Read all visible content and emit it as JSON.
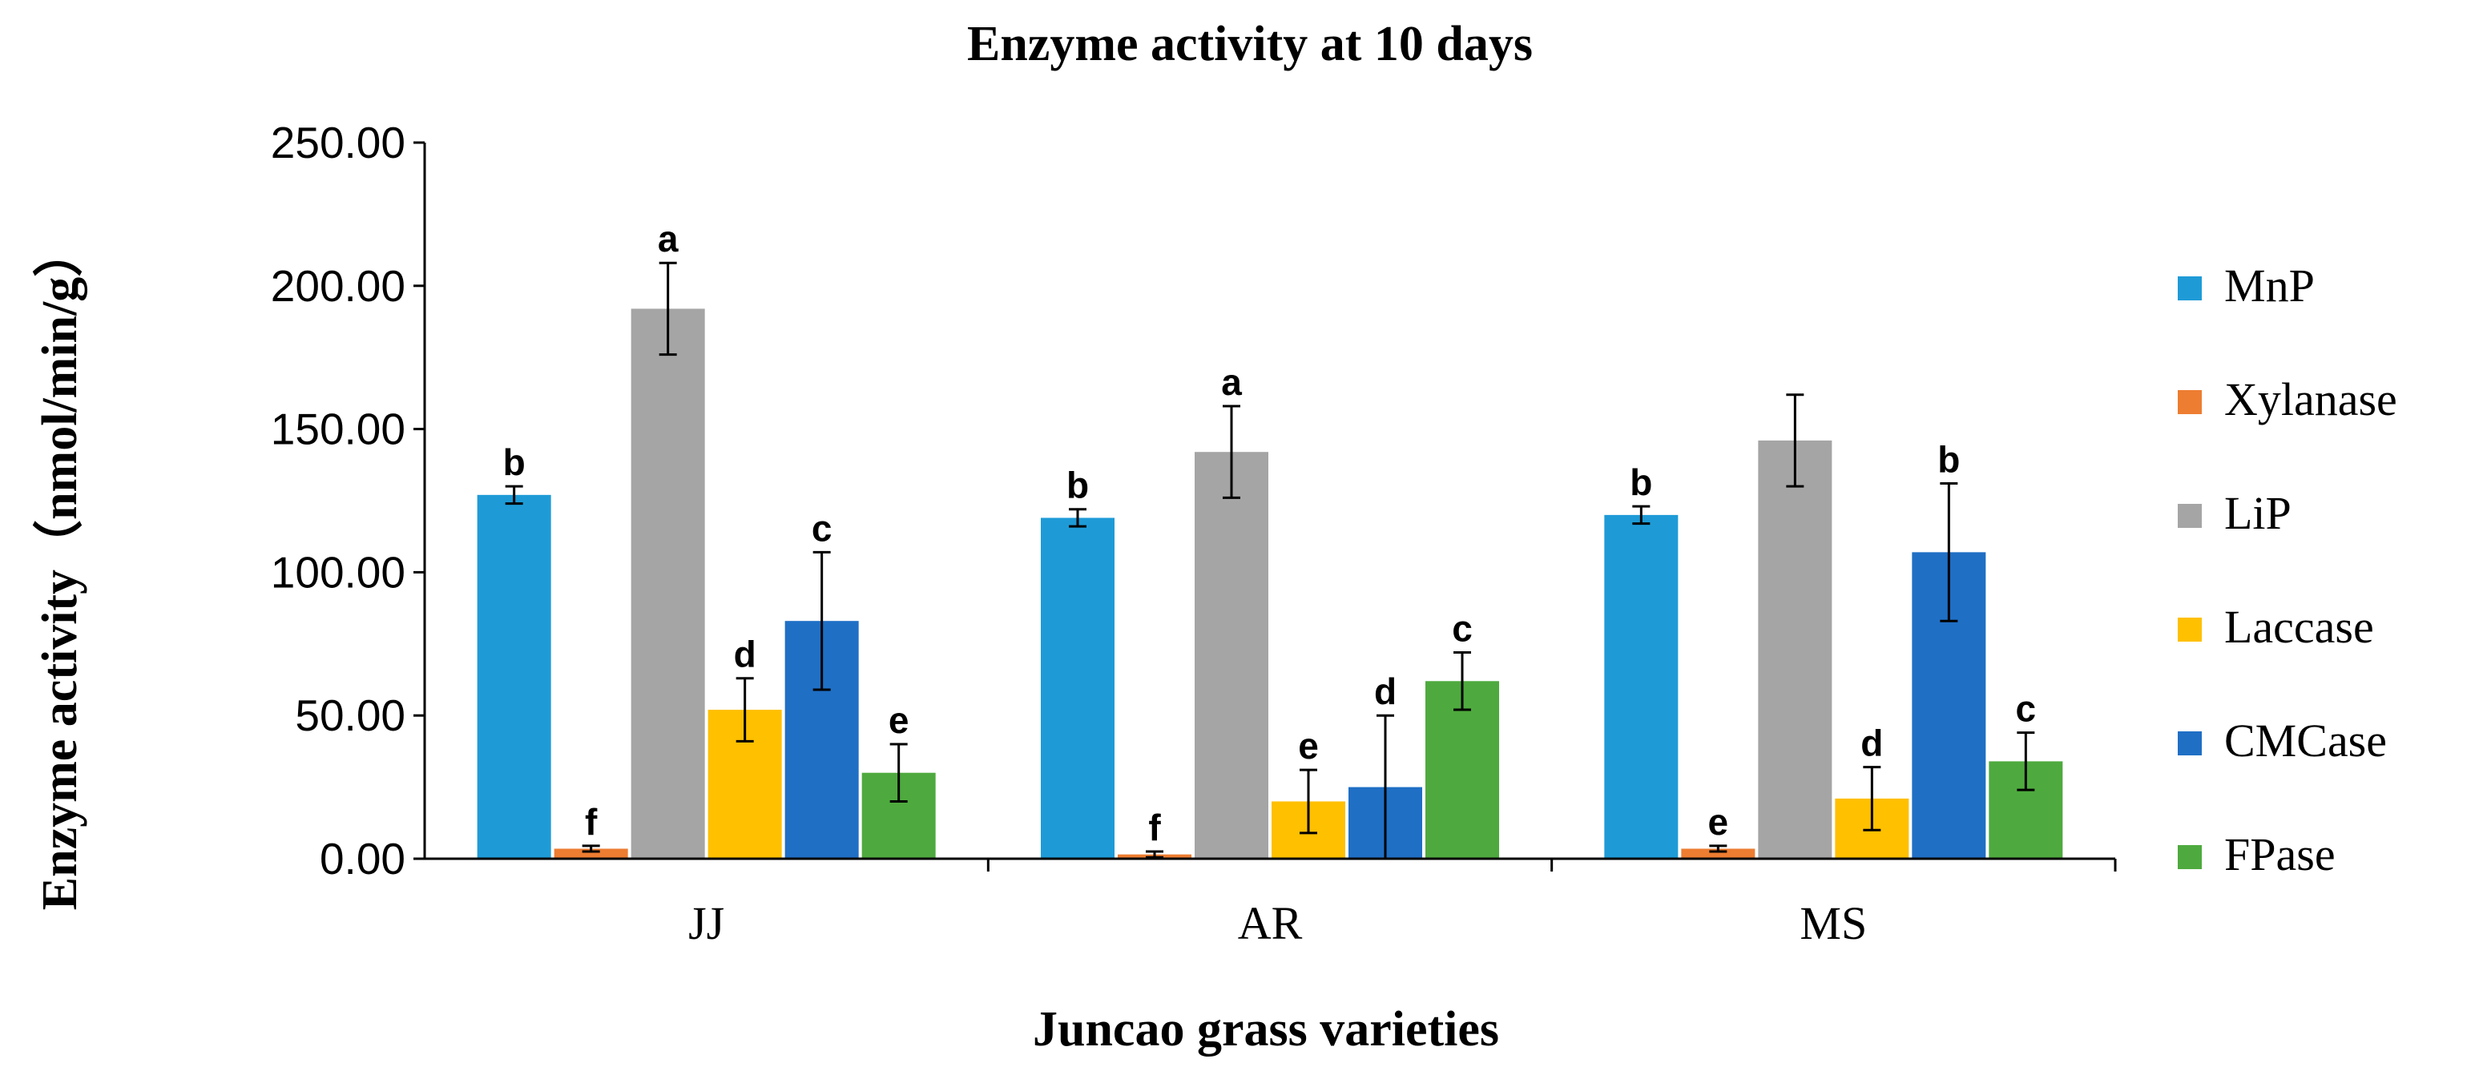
{
  "chart_data": {
    "type": "bar",
    "title": "Enzyme activity at 10 days",
    "xlabel": "Juncao grass varieties",
    "ylabel": "Enzyme activity（nmol/min/g）",
    "ylim": [
      0,
      250
    ],
    "yticks": [
      "0.00",
      "50.00",
      "100.00",
      "150.00",
      "200.00",
      "250.00"
    ],
    "grid": false,
    "legend_position": "right",
    "categories": [
      "JJ",
      "AR",
      "MS"
    ],
    "series": [
      {
        "name": "MnP",
        "color": "#1E9BD7",
        "values": [
          127,
          119,
          120
        ],
        "errors": [
          3,
          3,
          3
        ],
        "letters": [
          "b",
          "b",
          "b"
        ]
      },
      {
        "name": "Xylanase",
        "color": "#ED7D31",
        "values": [
          3.5,
          1.5,
          3.5
        ],
        "errors": [
          1,
          1,
          1
        ],
        "letters": [
          "f",
          "f",
          "e"
        ]
      },
      {
        "name": "LiP",
        "color": "#A5A5A5",
        "values": [
          192,
          142,
          146
        ],
        "errors": [
          16,
          16,
          16
        ],
        "letters": [
          "a",
          "a",
          ""
        ]
      },
      {
        "name": "Laccase",
        "color": "#FFC000",
        "values": [
          52,
          20,
          21
        ],
        "errors": [
          11,
          11,
          11
        ],
        "letters": [
          "d",
          "e",
          "d"
        ]
      },
      {
        "name": "CMCase",
        "color": "#1F6FC5",
        "values": [
          83,
          25,
          107
        ],
        "errors": [
          24,
          25,
          24
        ],
        "letters": [
          "c",
          "d",
          "b"
        ]
      },
      {
        "name": "FPase",
        "color": "#4EAA3E",
        "values": [
          30,
          62,
          34
        ],
        "errors": [
          10,
          10,
          10
        ],
        "letters": [
          "e",
          "c",
          "c"
        ]
      }
    ]
  }
}
